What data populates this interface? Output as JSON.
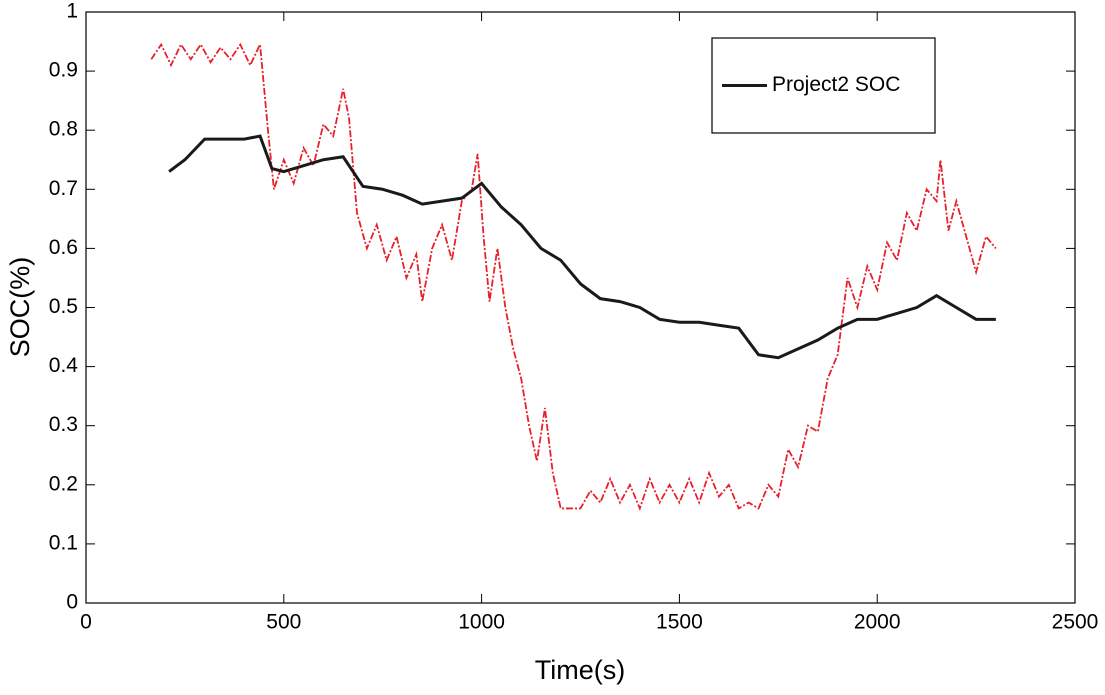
{
  "chart_data": {
    "type": "line",
    "xlabel": "Time(s)",
    "ylabel": "SOC(%)",
    "xlim": [
      0,
      2500
    ],
    "xticks": [
      0,
      500,
      1000,
      1500,
      2000,
      2500
    ],
    "ylim": [
      0,
      1
    ],
    "yticks": [
      0,
      0.1,
      0.2,
      0.3,
      0.4,
      0.5,
      0.6,
      0.7,
      0.8,
      0.9,
      1
    ],
    "legend": "upper right",
    "series": [
      {
        "color": "#e8202a",
        "x": [
          165,
          190,
          215,
          240,
          265,
          290,
          315,
          340,
          365,
          390,
          415,
          440,
          460,
          475,
          500,
          525,
          550,
          575,
          600,
          625,
          650,
          665,
          685,
          710,
          735,
          760,
          785,
          810,
          835,
          850,
          875,
          900,
          925,
          950,
          975,
          990,
          1005,
          1020,
          1040,
          1060,
          1080,
          1100,
          1120,
          1140,
          1160,
          1180,
          1200,
          1225,
          1250,
          1275,
          1300,
          1325,
          1350,
          1375,
          1400,
          1425,
          1450,
          1475,
          1500,
          1525,
          1550,
          1575,
          1600,
          1625,
          1650,
          1675,
          1700,
          1725,
          1750,
          1775,
          1800,
          1825,
          1850,
          1875,
          1900,
          1925,
          1950,
          1975,
          2000,
          2025,
          2050,
          2075,
          2100,
          2125,
          2150,
          2160,
          2180,
          2200,
          2225,
          2250,
          2275,
          2300
        ],
        "values": [
          0.92,
          0.945,
          0.91,
          0.945,
          0.92,
          0.945,
          0.915,
          0.94,
          0.92,
          0.945,
          0.91,
          0.945,
          0.8,
          0.7,
          0.75,
          0.71,
          0.77,
          0.74,
          0.81,
          0.79,
          0.87,
          0.82,
          0.66,
          0.6,
          0.64,
          0.58,
          0.62,
          0.55,
          0.59,
          0.51,
          0.6,
          0.64,
          0.58,
          0.68,
          0.7,
          0.76,
          0.62,
          0.51,
          0.6,
          0.5,
          0.43,
          0.38,
          0.3,
          0.24,
          0.33,
          0.22,
          0.16,
          0.16,
          0.16,
          0.19,
          0.17,
          0.21,
          0.17,
          0.2,
          0.16,
          0.21,
          0.17,
          0.2,
          0.17,
          0.21,
          0.17,
          0.22,
          0.18,
          0.2,
          0.16,
          0.17,
          0.16,
          0.2,
          0.18,
          0.26,
          0.23,
          0.3,
          0.29,
          0.38,
          0.42,
          0.55,
          0.5,
          0.57,
          0.53,
          0.61,
          0.58,
          0.66,
          0.63,
          0.7,
          0.68,
          0.75,
          0.63,
          0.68,
          0.62,
          0.56,
          0.62,
          0.6
        ],
        "dash": true
      },
      {
        "name": "Project2 SOC",
        "color": "#1a1a1a",
        "x": [
          210,
          250,
          300,
          350,
          400,
          440,
          470,
          500,
          550,
          600,
          650,
          700,
          750,
          800,
          850,
          900,
          950,
          1000,
          1050,
          1100,
          1150,
          1200,
          1250,
          1300,
          1350,
          1400,
          1450,
          1500,
          1550,
          1600,
          1650,
          1700,
          1750,
          1800,
          1850,
          1900,
          1950,
          2000,
          2050,
          2100,
          2150,
          2200,
          2250,
          2300
        ],
        "values": [
          0.73,
          0.75,
          0.785,
          0.785,
          0.785,
          0.79,
          0.735,
          0.73,
          0.74,
          0.75,
          0.755,
          0.705,
          0.7,
          0.69,
          0.675,
          0.68,
          0.685,
          0.71,
          0.67,
          0.64,
          0.6,
          0.58,
          0.54,
          0.515,
          0.51,
          0.5,
          0.48,
          0.475,
          0.475,
          0.47,
          0.465,
          0.42,
          0.415,
          0.43,
          0.445,
          0.465,
          0.48,
          0.48,
          0.49,
          0.5,
          0.52,
          0.5,
          0.48,
          0.48
        ]
      }
    ]
  }
}
